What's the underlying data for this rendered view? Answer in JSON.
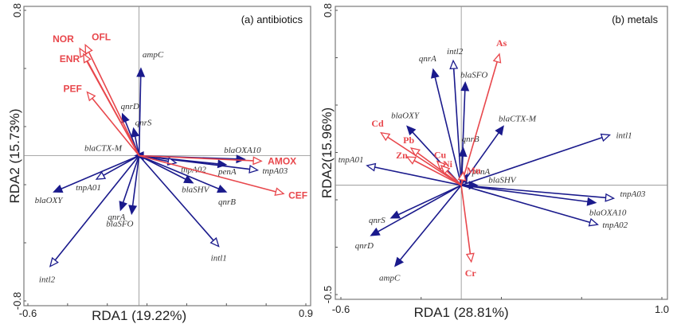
{
  "chart_data": [
    {
      "type": "scatter",
      "subtype": "rda-biplot",
      "title": "(a)  antibiotics",
      "xlabel": "RDA1 (19.22%)",
      "ylabel": "RDA2 (15.73%)",
      "xlim": [
        -0.6,
        0.9
      ],
      "ylim": [
        -0.8,
        0.8
      ],
      "x_tick_labels": [
        "-0.6",
        "0.9"
      ],
      "y_tick_labels": [
        "0.8",
        "-0.8"
      ],
      "grid": false,
      "colors": {
        "genes": "#1a1a8c",
        "environment": "#e8474c"
      },
      "environment_vectors": [
        {
          "name": "NOR",
          "x": -0.32,
          "y": 0.59
        },
        {
          "name": "OFL",
          "x": -0.29,
          "y": 0.61
        },
        {
          "name": "ENR",
          "x": -0.3,
          "y": 0.56
        },
        {
          "name": "PEF",
          "x": -0.28,
          "y": 0.35
        },
        {
          "name": "AMOX",
          "x": 0.66,
          "y": -0.03
        },
        {
          "name": "CEF",
          "x": 0.78,
          "y": -0.21
        }
      ],
      "gene_vectors": [
        {
          "name": "ampC",
          "x": 0.01,
          "y": 0.48,
          "head": "filled"
        },
        {
          "name": "qnrD",
          "x": -0.09,
          "y": 0.23,
          "head": "filled"
        },
        {
          "name": "qnrS",
          "x": -0.03,
          "y": 0.15,
          "head": "filled"
        },
        {
          "name": "blaCTX-M",
          "x": -0.02,
          "y": 0.0,
          "head": "filled"
        },
        {
          "name": "blaOXA10",
          "x": 0.57,
          "y": -0.02,
          "head": "filled"
        },
        {
          "name": "penA",
          "x": 0.47,
          "y": -0.05,
          "head": "filled"
        },
        {
          "name": "tnpA03",
          "x": 0.64,
          "y": -0.08,
          "head": "open"
        },
        {
          "name": "tnpA02",
          "x": 0.2,
          "y": -0.04,
          "head": "open"
        },
        {
          "name": "blaSHV",
          "x": 0.29,
          "y": -0.15,
          "head": "filled"
        },
        {
          "name": "qnrB",
          "x": 0.47,
          "y": -0.2,
          "head": "filled"
        },
        {
          "name": "intl1",
          "x": 0.43,
          "y": -0.5,
          "head": "open"
        },
        {
          "name": "intl2",
          "x": -0.48,
          "y": -0.61,
          "head": "open"
        },
        {
          "name": "blaOXY",
          "x": -0.46,
          "y": -0.2,
          "head": "filled"
        },
        {
          "name": "tnpA01",
          "x": -0.23,
          "y": -0.13,
          "head": "open"
        },
        {
          "name": "qnrA",
          "x": -0.1,
          "y": -0.3,
          "head": "filled"
        },
        {
          "name": "blaSFO",
          "x": -0.04,
          "y": -0.32,
          "head": "filled"
        }
      ]
    },
    {
      "type": "scatter",
      "subtype": "rda-biplot",
      "title": "(b)  metals",
      "xlabel": "RDA1 (28.81%)",
      "ylabel": "RDA2(15.96%)",
      "xlim": [
        -0.6,
        1.0
      ],
      "ylim": [
        -0.5,
        0.8
      ],
      "x_tick_labels": [
        "-0.6",
        "1.0"
      ],
      "y_tick_labels": [
        "0.8",
        "-0.5"
      ],
      "grid": false,
      "colors": {
        "genes": "#1a1a8c",
        "environment": "#e8474c"
      },
      "environment_vectors": [
        {
          "name": "As",
          "x": 0.19,
          "y": 0.6
        },
        {
          "name": "Cd",
          "x": -0.4,
          "y": 0.24
        },
        {
          "name": "Pb",
          "x": -0.25,
          "y": 0.17
        },
        {
          "name": "Zn",
          "x": -0.27,
          "y": 0.13
        },
        {
          "name": "Cu",
          "x": -0.12,
          "y": 0.11
        },
        {
          "name": "Ni",
          "x": -0.1,
          "y": 0.09
        },
        {
          "name": "Mn",
          "x": 0.01,
          "y": 0.06
        },
        {
          "name": "Cr",
          "x": 0.05,
          "y": -0.35
        }
      ],
      "gene_vectors": [
        {
          "name": "intl2",
          "x": -0.04,
          "y": 0.57,
          "head": "open"
        },
        {
          "name": "qnrA",
          "x": -0.14,
          "y": 0.53,
          "head": "filled"
        },
        {
          "name": "blaSFO",
          "x": 0.02,
          "y": 0.47,
          "head": "filled"
        },
        {
          "name": "blaCTX-M",
          "x": 0.21,
          "y": 0.27,
          "head": "filled"
        },
        {
          "name": "intl1",
          "x": 0.74,
          "y": 0.23,
          "head": "open"
        },
        {
          "name": "blaOXY",
          "x": -0.27,
          "y": 0.27,
          "head": "filled"
        },
        {
          "name": "qnrB",
          "x": 0.01,
          "y": 0.17,
          "head": "filled"
        },
        {
          "name": "penA",
          "x": 0.03,
          "y": 0.05,
          "head": "filled"
        },
        {
          "name": "tnpA01",
          "x": -0.47,
          "y": 0.09,
          "head": "open"
        },
        {
          "name": "blaSHV",
          "x": 0.08,
          "y": 0.0,
          "head": "filled"
        },
        {
          "name": "tnpA03",
          "x": 0.76,
          "y": -0.06,
          "head": "open"
        },
        {
          "name": "blaOXA10",
          "x": 0.67,
          "y": -0.08,
          "head": "filled"
        },
        {
          "name": "tnpA02",
          "x": 0.68,
          "y": -0.18,
          "head": "open"
        },
        {
          "name": "qnrS",
          "x": -0.35,
          "y": -0.15,
          "head": "filled"
        },
        {
          "name": "qnrD",
          "x": -0.45,
          "y": -0.23,
          "head": "filled"
        },
        {
          "name": "ampC",
          "x": -0.33,
          "y": -0.37,
          "head": "filled"
        }
      ]
    }
  ]
}
